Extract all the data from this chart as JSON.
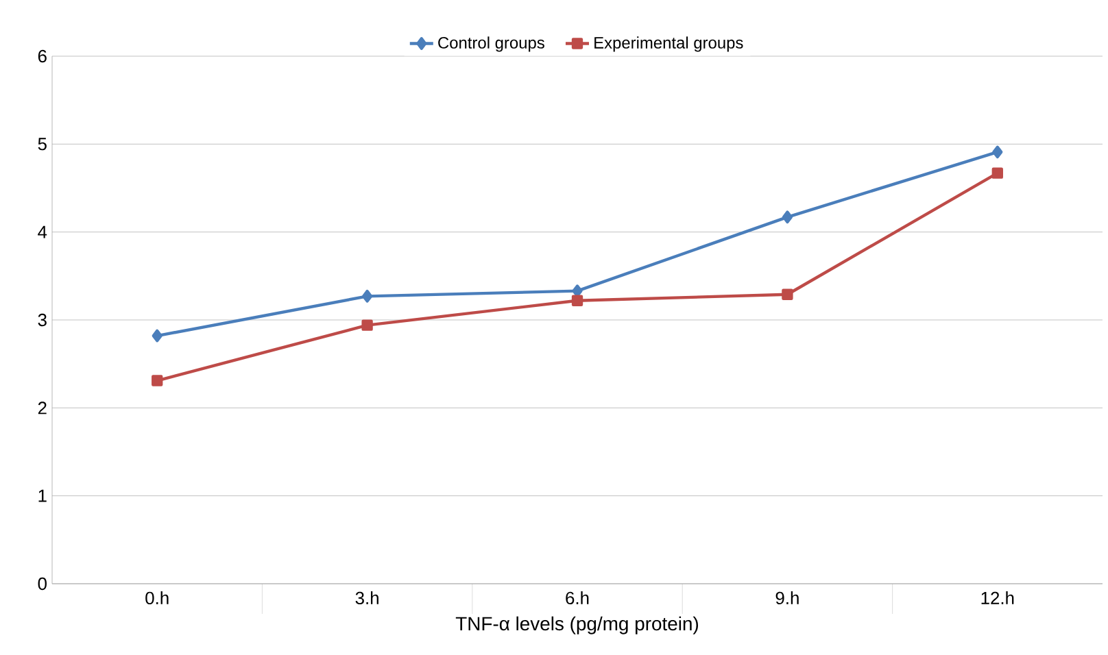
{
  "chart_data": {
    "type": "line",
    "xlabel": "TNF-α levels (pg/mg protein)",
    "categories": [
      "0.h",
      "3.h",
      "6.h",
      "9.h",
      "12.h"
    ],
    "series": [
      {
        "name": "Control groups",
        "color": "#4a7ebb",
        "marker": "diamond",
        "values": [
          2.82,
          3.27,
          3.33,
          4.17,
          4.91
        ]
      },
      {
        "name": "Experimental groups",
        "color": "#be4b48",
        "marker": "square",
        "values": [
          2.31,
          2.94,
          3.22,
          3.29,
          4.67
        ]
      }
    ],
    "ylim": [
      0,
      6
    ],
    "yticks": [
      0,
      1,
      2,
      3,
      4,
      5,
      6
    ],
    "grid": "y",
    "legend": "top"
  }
}
